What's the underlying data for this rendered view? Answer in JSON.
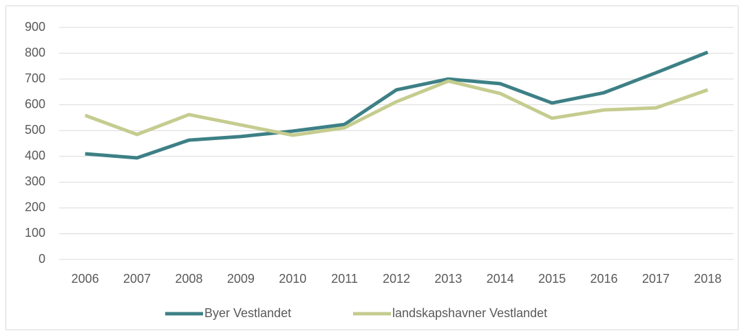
{
  "chart_data": {
    "type": "line",
    "categories": [
      "2006",
      "2007",
      "2008",
      "2009",
      "2010",
      "2011",
      "2012",
      "2013",
      "2014",
      "2015",
      "2016",
      "2017",
      "2018"
    ],
    "series": [
      {
        "name": "Byer Vestlandet",
        "color": "#3d8086",
        "values": [
          410,
          394,
          463,
          477,
          498,
          524,
          658,
          700,
          682,
          607,
          647,
          724,
          804
        ]
      },
      {
        "name": "landskapshavner Vestlandet",
        "color": "#c5cc8f",
        "values": [
          559,
          485,
          562,
          522,
          482,
          511,
          612,
          692,
          644,
          548,
          580,
          588,
          658
        ]
      }
    ],
    "ylim": [
      0,
      900
    ],
    "yticks": [
      0,
      100,
      200,
      300,
      400,
      500,
      600,
      700,
      800,
      900
    ],
    "grid": true,
    "legend": "bottom"
  }
}
